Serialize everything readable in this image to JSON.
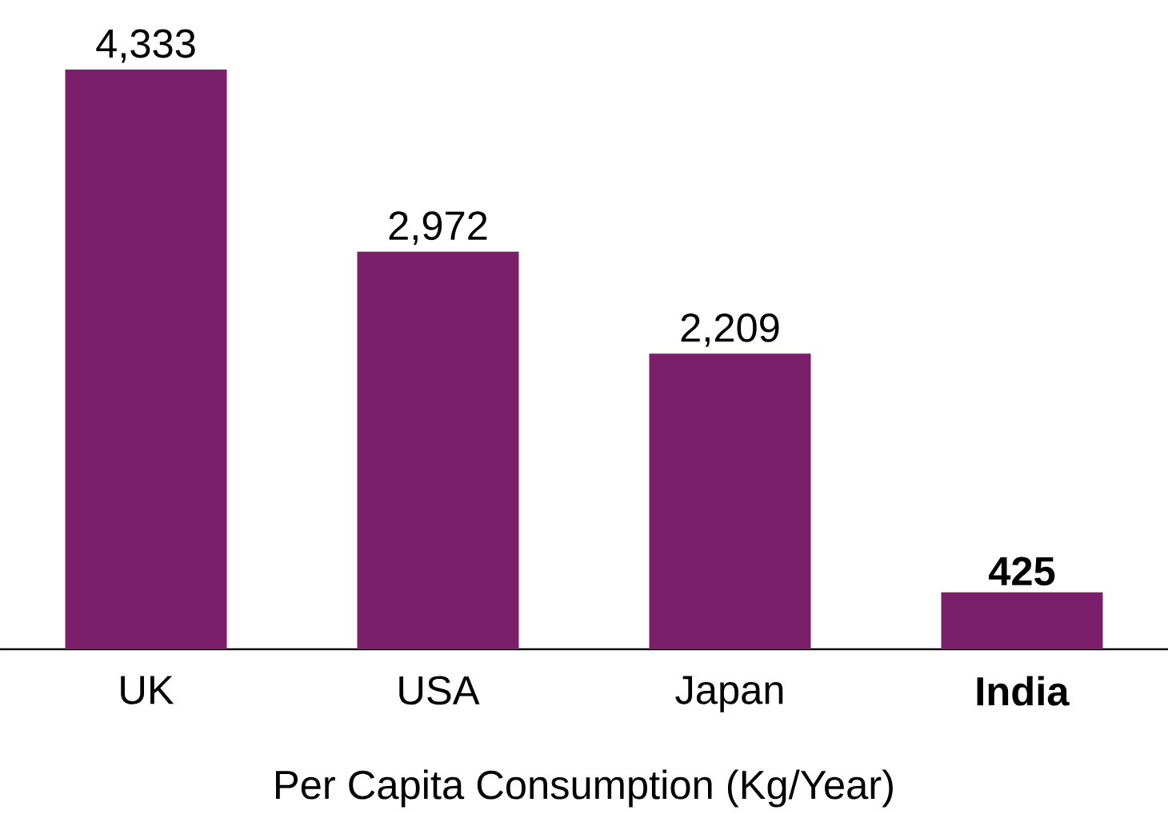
{
  "chart_data": {
    "type": "bar",
    "categories": [
      "UK",
      "USA",
      "Japan",
      "**India**"
    ],
    "values": [
      4333,
      2972,
      2209,
      425
    ],
    "value_labels": [
      "4,333",
      "2,972",
      "2,209",
      "**425**"
    ],
    "color": "#7b1f6a",
    "xlabel": "Per Capita Consumption (Kg/Year)"
  }
}
